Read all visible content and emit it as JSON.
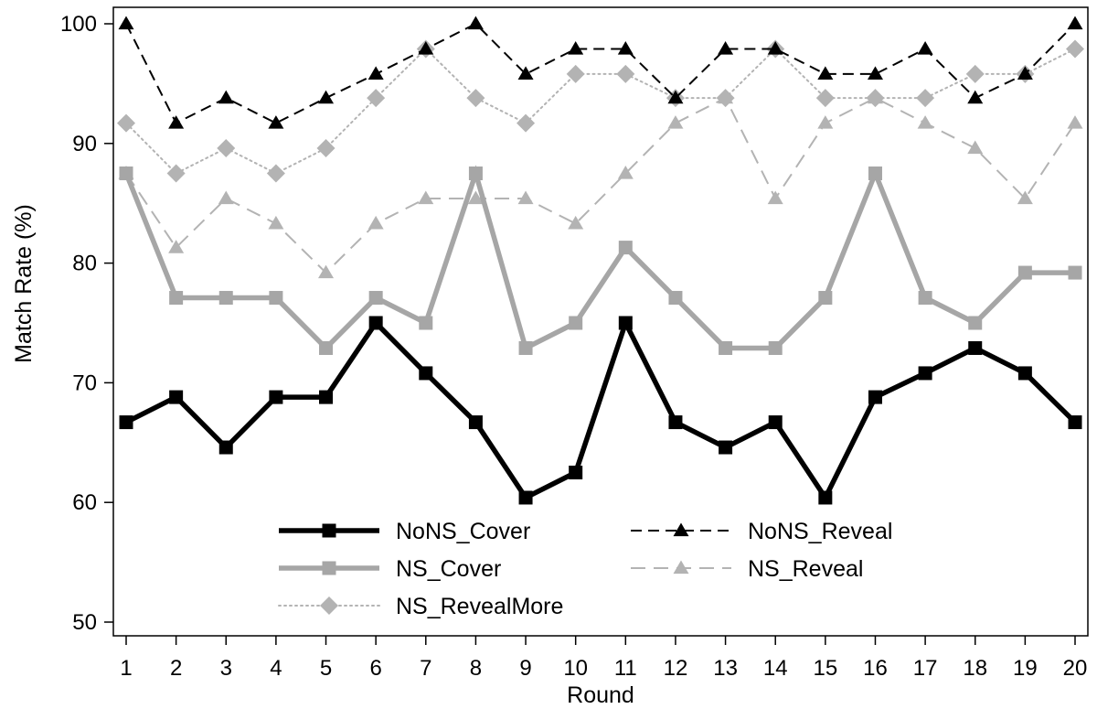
{
  "chart_data": {
    "type": "line",
    "xlabel": "Round",
    "ylabel": "Match Rate (%)",
    "xlim": [
      1,
      20
    ],
    "ylim": [
      50,
      100
    ],
    "x": [
      1,
      2,
      3,
      4,
      5,
      6,
      7,
      8,
      9,
      10,
      11,
      12,
      13,
      14,
      15,
      16,
      17,
      18,
      19,
      20
    ],
    "x_ticks": [
      "1",
      "2",
      "3",
      "4",
      "5",
      "6",
      "7",
      "8",
      "9",
      "10",
      "11",
      "12",
      "13",
      "14",
      "15",
      "16",
      "17",
      "18",
      "19",
      "20"
    ],
    "y_ticks": [
      "50",
      "60",
      "70",
      "80",
      "90",
      "100"
    ],
    "grid": false,
    "legend_position": "bottom-inside",
    "series": [
      {
        "name": "NoNS_Cover",
        "color": "#000000",
        "line_style": "solid-thick",
        "marker": "square",
        "values": [
          66.7,
          68.8,
          64.6,
          68.8,
          68.8,
          75.0,
          70.8,
          66.7,
          60.4,
          62.5,
          75.0,
          66.7,
          64.6,
          66.7,
          60.4,
          68.8,
          70.8,
          72.9,
          70.8,
          66.7
        ]
      },
      {
        "name": "NoNS_Reveal",
        "color": "#000000",
        "line_style": "dashed",
        "marker": "triangle",
        "values": [
          100,
          91.7,
          93.8,
          91.7,
          93.8,
          95.8,
          97.9,
          100,
          95.8,
          97.9,
          97.9,
          93.8,
          97.9,
          97.9,
          95.8,
          95.8,
          97.9,
          93.8,
          95.8,
          100
        ]
      },
      {
        "name": "NS_Cover",
        "color": "#a6a6a6",
        "line_style": "solid-thick",
        "marker": "square",
        "values": [
          87.5,
          77.1,
          77.1,
          77.1,
          72.9,
          77.1,
          75.0,
          87.5,
          72.9,
          75.0,
          81.3,
          77.1,
          72.9,
          72.9,
          77.1,
          87.5,
          77.1,
          75.0,
          79.2,
          79.2
        ]
      },
      {
        "name": "NS_Reveal",
        "color": "#b3b3b3",
        "line_style": "long-dashed",
        "marker": "triangle",
        "values": [
          87.5,
          81.3,
          85.4,
          83.3,
          79.2,
          83.3,
          85.4,
          85.4,
          85.4,
          83.3,
          87.5,
          91.7,
          93.8,
          85.4,
          91.7,
          93.8,
          91.7,
          89.6,
          85.4,
          91.7
        ]
      },
      {
        "name": "NS_RevealMore",
        "color": "#b3b3b3",
        "line_style": "dotted",
        "marker": "diamond",
        "values": [
          91.7,
          87.5,
          89.6,
          87.5,
          89.6,
          93.8,
          97.9,
          93.8,
          91.7,
          95.8,
          95.8,
          93.8,
          93.8,
          97.9,
          93.8,
          93.8,
          93.8,
          95.8,
          95.8,
          97.9
        ]
      }
    ]
  }
}
